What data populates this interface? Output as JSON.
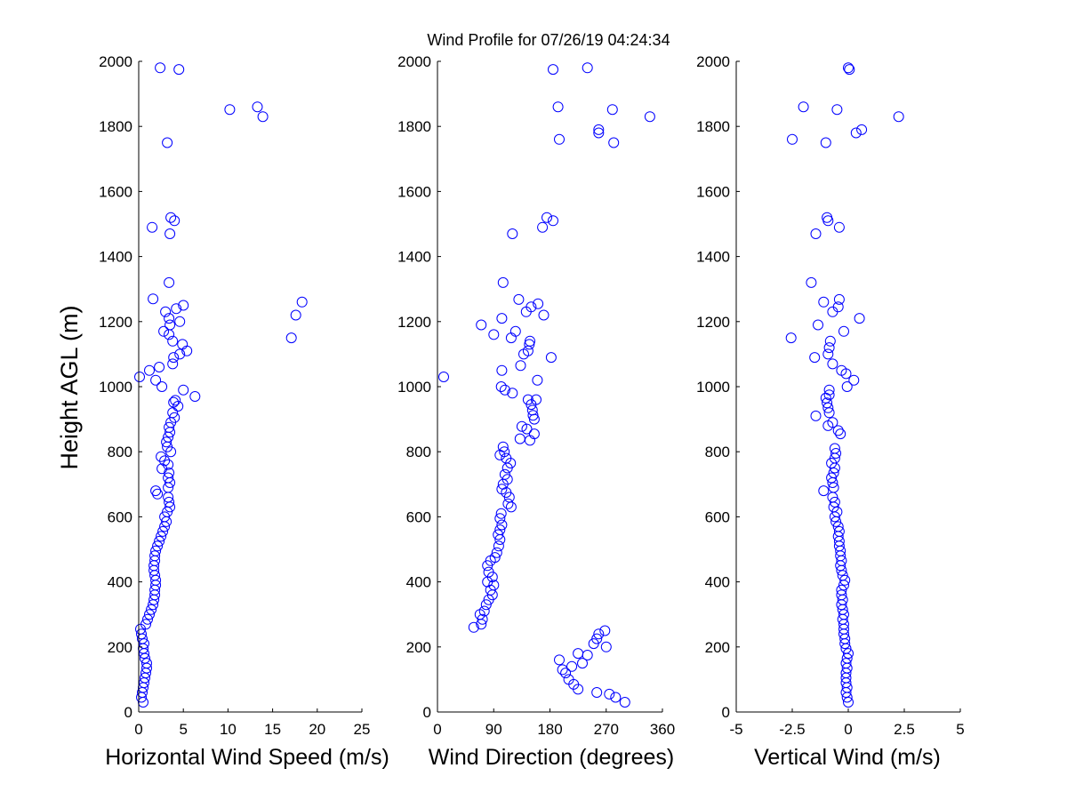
{
  "figure_title": "Wind Profile for  07/26/19 04:24:34",
  "chart_data": [
    {
      "type": "scatter",
      "title": "Wind Profile for  07/26/19 04:24:34",
      "xlabel": "Horizontal Wind Speed (m/s)",
      "ylabel": "Height AGL (m)",
      "xlim": [
        0,
        25
      ],
      "ylim": [
        0,
        2000
      ],
      "xticks": [
        0,
        5,
        10,
        15,
        20,
        25
      ],
      "xtick_labels": [
        "0",
        "5",
        "10",
        "15",
        "20",
        "25"
      ],
      "yticks": [
        0,
        200,
        400,
        600,
        800,
        1000,
        1200,
        1400,
        1600,
        1800,
        2000
      ],
      "ytick_labels": [
        "0",
        "200",
        "400",
        "600",
        "800",
        "1000",
        "1200",
        "1400",
        "1600",
        "1800",
        "2000"
      ],
      "marker_color": "#0000ff",
      "points": [
        [
          0.5,
          30
        ],
        [
          0.3,
          45
        ],
        [
          0.4,
          60
        ],
        [
          0.5,
          75
        ],
        [
          0.6,
          90
        ],
        [
          0.7,
          105
        ],
        [
          0.8,
          120
        ],
        [
          0.9,
          135
        ],
        [
          0.9,
          150
        ],
        [
          0.7,
          165
        ],
        [
          0.6,
          180
        ],
        [
          0.5,
          195
        ],
        [
          0.6,
          210
        ],
        [
          0.4,
          225
        ],
        [
          0.3,
          240
        ],
        [
          0.2,
          255
        ],
        [
          0.8,
          270
        ],
        [
          1.0,
          285
        ],
        [
          1.2,
          300
        ],
        [
          1.4,
          315
        ],
        [
          1.6,
          330
        ],
        [
          1.7,
          345
        ],
        [
          1.8,
          360
        ],
        [
          1.8,
          375
        ],
        [
          1.9,
          390
        ],
        [
          1.9,
          405
        ],
        [
          1.8,
          420
        ],
        [
          1.7,
          435
        ],
        [
          1.7,
          450
        ],
        [
          1.8,
          465
        ],
        [
          1.8,
          480
        ],
        [
          1.9,
          495
        ],
        [
          2.1,
          510
        ],
        [
          2.3,
          525
        ],
        [
          2.5,
          540
        ],
        [
          2.7,
          555
        ],
        [
          2.9,
          570
        ],
        [
          3.1,
          585
        ],
        [
          2.9,
          600
        ],
        [
          3.2,
          615
        ],
        [
          3.5,
          630
        ],
        [
          3.4,
          645
        ],
        [
          3.3,
          660
        ],
        [
          2.1,
          670
        ],
        [
          1.9,
          680
        ],
        [
          3.3,
          690
        ],
        [
          3.5,
          705
        ],
        [
          3.3,
          720
        ],
        [
          3.4,
          735
        ],
        [
          2.6,
          748
        ],
        [
          3.3,
          760
        ],
        [
          2.9,
          772
        ],
        [
          2.5,
          785
        ],
        [
          3.6,
          800
        ],
        [
          3.2,
          815
        ],
        [
          3.1,
          830
        ],
        [
          3.3,
          845
        ],
        [
          3.5,
          860
        ],
        [
          3.4,
          875
        ],
        [
          3.6,
          890
        ],
        [
          4.0,
          905
        ],
        [
          3.8,
          920
        ],
        [
          4.4,
          940
        ],
        [
          3.9,
          952
        ],
        [
          4.1,
          958
        ],
        [
          6.3,
          970
        ],
        [
          5.0,
          990
        ],
        [
          2.6,
          1000
        ],
        [
          1.9,
          1020
        ],
        [
          0.1,
          1030
        ],
        [
          1.2,
          1050
        ],
        [
          2.3,
          1060
        ],
        [
          3.8,
          1070
        ],
        [
          3.9,
          1090
        ],
        [
          4.6,
          1100
        ],
        [
          5.4,
          1110
        ],
        [
          4.9,
          1130
        ],
        [
          3.8,
          1140
        ],
        [
          3.4,
          1160
        ],
        [
          2.8,
          1170
        ],
        [
          17.1,
          1150
        ],
        [
          3.5,
          1190
        ],
        [
          4.6,
          1200
        ],
        [
          3.4,
          1210
        ],
        [
          17.6,
          1220
        ],
        [
          3.0,
          1230
        ],
        [
          4.2,
          1240
        ],
        [
          5.0,
          1250
        ],
        [
          18.3,
          1260
        ],
        [
          1.6,
          1270
        ],
        [
          3.4,
          1320
        ],
        [
          3.5,
          1470
        ],
        [
          1.5,
          1490
        ],
        [
          4.0,
          1510
        ],
        [
          3.6,
          1520
        ],
        [
          3.2,
          1750
        ],
        [
          10.2,
          1852
        ],
        [
          13.3,
          1860
        ],
        [
          13.9,
          1830
        ],
        [
          2.4,
          1980
        ],
        [
          4.5,
          1975
        ]
      ]
    },
    {
      "type": "scatter",
      "xlabel": "Wind Direction (degrees)",
      "ylabel": "",
      "xlim": [
        0,
        360
      ],
      "ylim": [
        0,
        2000
      ],
      "xticks": [
        0,
        90,
        180,
        270,
        360
      ],
      "xtick_labels": [
        "0",
        "90",
        "180",
        "270",
        "360"
      ],
      "yticks": [
        0,
        200,
        400,
        600,
        800,
        1000,
        1200,
        1400,
        1600,
        1800,
        2000
      ],
      "ytick_labels": [
        "0",
        "200",
        "400",
        "600",
        "800",
        "1000",
        "1200",
        "1400",
        "1600",
        "1800",
        "2000"
      ],
      "marker_color": "#0000ff",
      "points": [
        [
          300,
          30
        ],
        [
          285,
          45
        ],
        [
          275,
          55
        ],
        [
          255,
          60
        ],
        [
          225,
          70
        ],
        [
          218,
          85
        ],
        [
          210,
          100
        ],
        [
          205,
          120
        ],
        [
          200,
          130
        ],
        [
          215,
          140
        ],
        [
          232,
          150
        ],
        [
          195,
          160
        ],
        [
          240,
          175
        ],
        [
          225,
          180
        ],
        [
          270,
          200
        ],
        [
          250,
          210
        ],
        [
          255,
          225
        ],
        [
          258,
          240
        ],
        [
          268,
          250
        ],
        [
          58,
          260
        ],
        [
          70,
          270
        ],
        [
          72,
          285
        ],
        [
          68,
          300
        ],
        [
          75,
          310
        ],
        [
          78,
          330
        ],
        [
          82,
          345
        ],
        [
          88,
          360
        ],
        [
          85,
          375
        ],
        [
          90,
          390
        ],
        [
          80,
          400
        ],
        [
          88,
          415
        ],
        [
          82,
          430
        ],
        [
          80,
          450
        ],
        [
          85,
          465
        ],
        [
          92,
          475
        ],
        [
          95,
          490
        ],
        [
          98,
          510
        ],
        [
          100,
          530
        ],
        [
          97,
          545
        ],
        [
          100,
          560
        ],
        [
          103,
          575
        ],
        [
          100,
          595
        ],
        [
          102,
          610
        ],
        [
          118,
          630
        ],
        [
          113,
          640
        ],
        [
          115,
          660
        ],
        [
          110,
          675
        ],
        [
          103,
          685
        ],
        [
          105,
          700
        ],
        [
          112,
          715
        ],
        [
          108,
          730
        ],
        [
          112,
          750
        ],
        [
          117,
          765
        ],
        [
          110,
          780
        ],
        [
          100,
          790
        ],
        [
          107,
          800
        ],
        [
          105,
          815
        ],
        [
          148,
          835
        ],
        [
          132,
          840
        ],
        [
          155,
          855
        ],
        [
          143,
          870
        ],
        [
          135,
          878
        ],
        [
          155,
          900
        ],
        [
          153,
          912
        ],
        [
          152,
          928
        ],
        [
          150,
          945
        ],
        [
          158,
          960
        ],
        [
          145,
          960
        ],
        [
          120,
          980
        ],
        [
          108,
          990
        ],
        [
          102,
          1000
        ],
        [
          160,
          1020
        ],
        [
          10,
          1030
        ],
        [
          103,
          1050
        ],
        [
          133,
          1065
        ],
        [
          182,
          1090
        ],
        [
          138,
          1100
        ],
        [
          145,
          1110
        ],
        [
          147,
          1130
        ],
        [
          148,
          1140
        ],
        [
          118,
          1150
        ],
        [
          90,
          1160
        ],
        [
          125,
          1170
        ],
        [
          70,
          1190
        ],
        [
          103,
          1210
        ],
        [
          170,
          1220
        ],
        [
          142,
          1230
        ],
        [
          150,
          1245
        ],
        [
          161,
          1255
        ],
        [
          130,
          1268
        ],
        [
          105,
          1320
        ],
        [
          120,
          1470
        ],
        [
          168,
          1490
        ],
        [
          185,
          1510
        ],
        [
          175,
          1520
        ],
        [
          195,
          1760
        ],
        [
          282,
          1750
        ],
        [
          258,
          1780
        ],
        [
          258,
          1790
        ],
        [
          340,
          1830
        ],
        [
          280,
          1852
        ],
        [
          193,
          1860
        ],
        [
          185,
          1975
        ],
        [
          240,
          1980
        ]
      ]
    },
    {
      "type": "scatter",
      "xlabel": "Vertical Wind (m/s)",
      "ylabel": "",
      "xlim": [
        -5,
        5
      ],
      "ylim": [
        0,
        2000
      ],
      "xticks": [
        -5,
        -2.5,
        0,
        2.5,
        5
      ],
      "xtick_labels": [
        "-5",
        "-2.5",
        "0",
        "2.5",
        "5"
      ],
      "yticks": [
        0,
        200,
        400,
        600,
        800,
        1000,
        1200,
        1400,
        1600,
        1800,
        2000
      ],
      "ytick_labels": [
        "0",
        "200",
        "400",
        "600",
        "800",
        "1000",
        "1200",
        "1400",
        "1600",
        "1800",
        "2000"
      ],
      "marker_color": "#0000ff",
      "points": [
        [
          0.0,
          30
        ],
        [
          -0.05,
          45
        ],
        [
          -0.1,
          60
        ],
        [
          -0.05,
          75
        ],
        [
          -0.1,
          90
        ],
        [
          -0.1,
          105
        ],
        [
          -0.1,
          120
        ],
        [
          -0.05,
          135
        ],
        [
          -0.1,
          150
        ],
        [
          -0.05,
          165
        ],
        [
          0.0,
          180
        ],
        [
          -0.1,
          195
        ],
        [
          -0.15,
          210
        ],
        [
          -0.15,
          225
        ],
        [
          -0.2,
          240
        ],
        [
          -0.2,
          255
        ],
        [
          -0.2,
          270
        ],
        [
          -0.25,
          285
        ],
        [
          -0.2,
          300
        ],
        [
          -0.25,
          315
        ],
        [
          -0.3,
          330
        ],
        [
          -0.25,
          345
        ],
        [
          -0.3,
          360
        ],
        [
          -0.3,
          375
        ],
        [
          -0.2,
          390
        ],
        [
          -0.15,
          405
        ],
        [
          -0.25,
          420
        ],
        [
          -0.3,
          435
        ],
        [
          -0.35,
          450
        ],
        [
          -0.3,
          465
        ],
        [
          -0.35,
          480
        ],
        [
          -0.35,
          495
        ],
        [
          -0.4,
          510
        ],
        [
          -0.4,
          525
        ],
        [
          -0.45,
          540
        ],
        [
          -0.4,
          555
        ],
        [
          -0.45,
          570
        ],
        [
          -0.55,
          585
        ],
        [
          -0.6,
          600
        ],
        [
          -0.5,
          615
        ],
        [
          -0.65,
          630
        ],
        [
          -0.6,
          645
        ],
        [
          -0.7,
          660
        ],
        [
          -1.1,
          680
        ],
        [
          -0.65,
          690
        ],
        [
          -0.7,
          705
        ],
        [
          -0.75,
          720
        ],
        [
          -0.65,
          735
        ],
        [
          -0.6,
          750
        ],
        [
          -0.75,
          765
        ],
        [
          -0.6,
          780
        ],
        [
          -0.55,
          795
        ],
        [
          -0.6,
          810
        ],
        [
          -0.35,
          855
        ],
        [
          -0.45,
          865
        ],
        [
          -0.9,
          880
        ],
        [
          -0.7,
          890
        ],
        [
          -1.45,
          910
        ],
        [
          -0.85,
          920
        ],
        [
          -0.9,
          935
        ],
        [
          -0.95,
          950
        ],
        [
          -1.0,
          965
        ],
        [
          -0.85,
          975
        ],
        [
          -0.85,
          990
        ],
        [
          -0.05,
          1000
        ],
        [
          0.25,
          1020
        ],
        [
          -0.1,
          1040
        ],
        [
          -0.3,
          1050
        ],
        [
          -0.7,
          1070
        ],
        [
          -1.5,
          1090
        ],
        [
          -0.9,
          1100
        ],
        [
          -0.85,
          1120
        ],
        [
          -0.8,
          1140
        ],
        [
          -2.55,
          1150
        ],
        [
          -0.2,
          1170
        ],
        [
          -1.35,
          1190
        ],
        [
          0.5,
          1210
        ],
        [
          -0.7,
          1230
        ],
        [
          -0.45,
          1245
        ],
        [
          -0.4,
          1268
        ],
        [
          -1.1,
          1260
        ],
        [
          -1.65,
          1320
        ],
        [
          -1.45,
          1470
        ],
        [
          -0.4,
          1490
        ],
        [
          -0.9,
          1510
        ],
        [
          -0.95,
          1520
        ],
        [
          -2.5,
          1760
        ],
        [
          -1.0,
          1750
        ],
        [
          0.35,
          1780
        ],
        [
          0.6,
          1790
        ],
        [
          2.25,
          1830
        ],
        [
          -0.5,
          1852
        ],
        [
          -2.0,
          1860
        ],
        [
          0.05,
          1975
        ],
        [
          0.0,
          1980
        ]
      ]
    }
  ]
}
